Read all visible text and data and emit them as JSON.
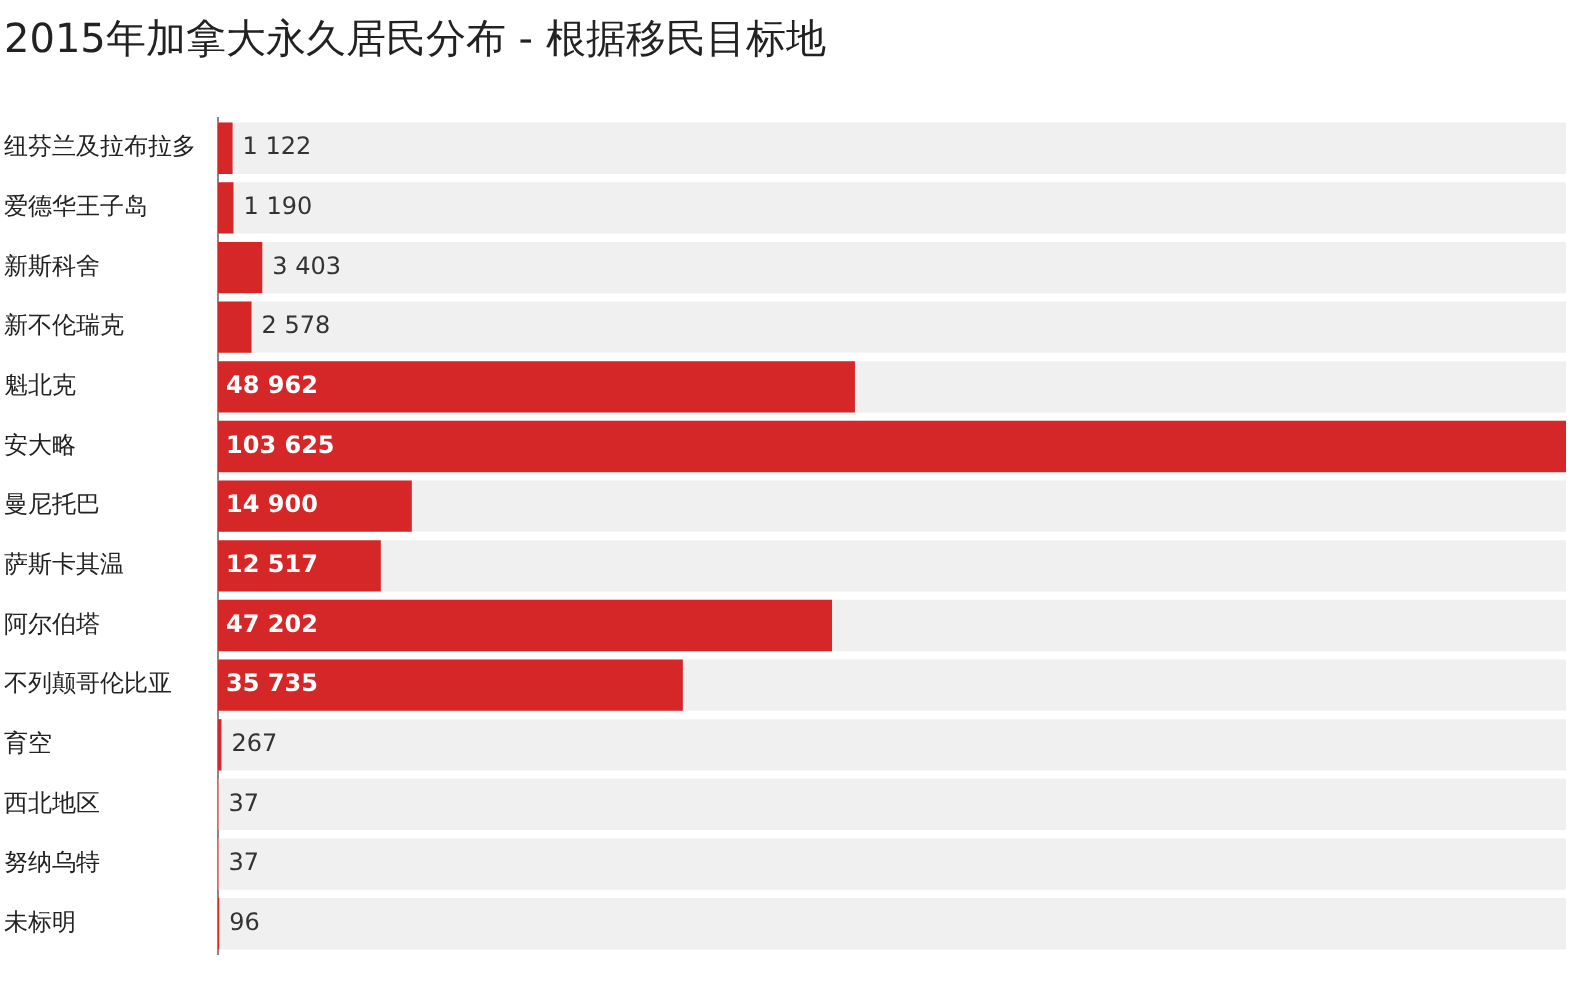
{
  "chart_data": {
    "type": "bar",
    "orientation": "horizontal",
    "title": "2015年加拿大永久居民分布 - 根据移民目标地",
    "categories": [
      "纽芬兰及拉布拉多",
      "爱德华王子岛",
      "新斯科舍",
      "新不伦瑞克",
      "魁北克",
      "安大略",
      "曼尼托巴",
      "萨斯卡其温",
      "阿尔伯塔",
      "不列颠哥伦比亚",
      "育空",
      "西北地区",
      "努纳乌特",
      "未标明"
    ],
    "values": [
      1122,
      1190,
      3403,
      2578,
      48962,
      103625,
      14900,
      12517,
      47202,
      35735,
      267,
      37,
      37,
      96
    ],
    "value_labels": [
      "1 122",
      "1 190",
      "3 403",
      "2 578",
      "48 962",
      "103 625",
      "14 900",
      "12 517",
      "47 202",
      "35 735",
      "267",
      "37",
      "37",
      "96"
    ],
    "color": "#d62728",
    "xlim": [
      0,
      103625
    ],
    "tick_labels": "y"
  }
}
